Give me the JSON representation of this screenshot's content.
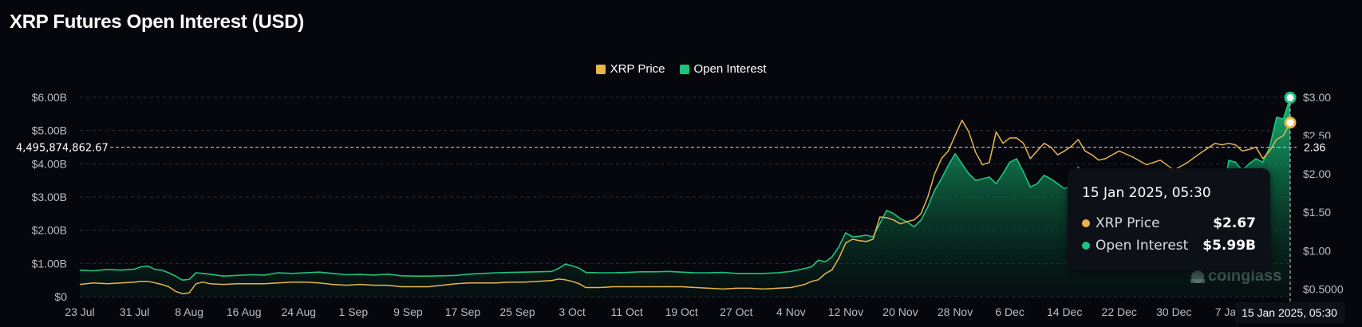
{
  "title": "XRP Futures Open Interest (USD)",
  "legend": [
    {
      "label": "XRP Price",
      "color": "#e9b54b"
    },
    {
      "label": "Open Interest",
      "color": "#1cc47e"
    }
  ],
  "watermark": "coinglass",
  "crosshair": {
    "left_value": "4,495,874,862.67",
    "right_value": "2.36",
    "x_label": "15 Jan 2025, 05:30"
  },
  "tooltip": {
    "title": "15 Jan 2025, 05:30",
    "rows": [
      {
        "name": "XRP Price",
        "value": "$2.67",
        "color": "#e9b54b"
      },
      {
        "name": "Open Interest",
        "value": "$5.99B",
        "color": "#1cc47e"
      }
    ]
  },
  "chart_data": {
    "type": "area",
    "title": "XRP Futures Open Interest (USD)",
    "x_ticks": [
      "23 Jul",
      "31 Jul",
      "8 Aug",
      "16 Aug",
      "24 Aug",
      "1 Sep",
      "9 Sep",
      "17 Sep",
      "25 Sep",
      "3 Oct",
      "11 Oct",
      "19 Oct",
      "27 Oct",
      "4 Nov",
      "12 Nov",
      "20 Nov",
      "28 Nov",
      "6 Dec",
      "14 Dec",
      "22 Dec",
      "30 Dec",
      "7 Jan"
    ],
    "left_axis": {
      "ticks": [
        "$0",
        "$1.00B",
        "$2.00B",
        "$3.00B",
        "$4.00B",
        "$5.00B",
        "$6.00B"
      ],
      "range": [
        0,
        6.0
      ],
      "unit": "USD billions"
    },
    "right_axis": {
      "ticks": [
        "$0.5000",
        "$1.00",
        "$1.50",
        "$2.00",
        "$2.50",
        "$3.00"
      ],
      "range": [
        0.4,
        3.0
      ],
      "unit": "USD"
    },
    "grid": true,
    "legend_position": "top-center",
    "x_range": [
      0,
      177
    ],
    "series": [
      {
        "name": "Open Interest",
        "axis": "left",
        "color": "#1cc47e",
        "points": [
          [
            0,
            0.8
          ],
          [
            2,
            0.78
          ],
          [
            4,
            0.82
          ],
          [
            6,
            0.8
          ],
          [
            8,
            0.83
          ],
          [
            9,
            0.9
          ],
          [
            10,
            0.92
          ],
          [
            11,
            0.82
          ],
          [
            12,
            0.8
          ],
          [
            13,
            0.72
          ],
          [
            14,
            0.62
          ],
          [
            15,
            0.5
          ],
          [
            16,
            0.52
          ],
          [
            17,
            0.72
          ],
          [
            18,
            0.7
          ],
          [
            19,
            0.68
          ],
          [
            21,
            0.62
          ],
          [
            23,
            0.64
          ],
          [
            25,
            0.66
          ],
          [
            27,
            0.65
          ],
          [
            29,
            0.72
          ],
          [
            31,
            0.7
          ],
          [
            33,
            0.72
          ],
          [
            35,
            0.74
          ],
          [
            37,
            0.7
          ],
          [
            39,
            0.66
          ],
          [
            41,
            0.67
          ],
          [
            43,
            0.65
          ],
          [
            45,
            0.68
          ],
          [
            47,
            0.63
          ],
          [
            49,
            0.62
          ],
          [
            51,
            0.62
          ],
          [
            53,
            0.63
          ],
          [
            55,
            0.64
          ],
          [
            57,
            0.68
          ],
          [
            59,
            0.7
          ],
          [
            61,
            0.72
          ],
          [
            63,
            0.73
          ],
          [
            65,
            0.74
          ],
          [
            67,
            0.75
          ],
          [
            69,
            0.76
          ],
          [
            70,
            0.85
          ],
          [
            71,
            0.98
          ],
          [
            72,
            0.93
          ],
          [
            73,
            0.86
          ],
          [
            74,
            0.73
          ],
          [
            76,
            0.72
          ],
          [
            78,
            0.72
          ],
          [
            80,
            0.73
          ],
          [
            82,
            0.75
          ],
          [
            84,
            0.75
          ],
          [
            86,
            0.76
          ],
          [
            88,
            0.74
          ],
          [
            90,
            0.72
          ],
          [
            92,
            0.72
          ],
          [
            94,
            0.73
          ],
          [
            96,
            0.7
          ],
          [
            98,
            0.7
          ],
          [
            100,
            0.7
          ],
          [
            102,
            0.72
          ],
          [
            104,
            0.76
          ],
          [
            106,
            0.85
          ],
          [
            107,
            0.9
          ],
          [
            108,
            1.1
          ],
          [
            109,
            1.05
          ],
          [
            110,
            1.2
          ],
          [
            111,
            1.5
          ],
          [
            112,
            1.92
          ],
          [
            113,
            1.8
          ],
          [
            114,
            1.82
          ],
          [
            115,
            1.85
          ],
          [
            116,
            1.8
          ],
          [
            117,
            2.2
          ],
          [
            118,
            2.6
          ],
          [
            119,
            2.5
          ],
          [
            120,
            2.35
          ],
          [
            121,
            2.25
          ],
          [
            122,
            2.1
          ],
          [
            123,
            2.3
          ],
          [
            124,
            2.7
          ],
          [
            125,
            3.2
          ],
          [
            126,
            3.55
          ],
          [
            127,
            3.95
          ],
          [
            128,
            4.3
          ],
          [
            129,
            4.0
          ],
          [
            130,
            3.7
          ],
          [
            131,
            3.5
          ],
          [
            132,
            3.55
          ],
          [
            133,
            3.6
          ],
          [
            134,
            3.4
          ],
          [
            135,
            3.7
          ],
          [
            136,
            4.05
          ],
          [
            137,
            4.15
          ],
          [
            138,
            3.75
          ],
          [
            139,
            3.3
          ],
          [
            140,
            3.4
          ],
          [
            141,
            3.65
          ],
          [
            142,
            3.55
          ],
          [
            143,
            3.4
          ],
          [
            144,
            3.25
          ],
          [
            145,
            3.35
          ],
          [
            146,
            3.9
          ],
          [
            147,
            3.55
          ],
          [
            148,
            3.3
          ],
          [
            149,
            3.1
          ],
          [
            150,
            3.2
          ],
          [
            152,
            3.15
          ],
          [
            154,
            2.8
          ],
          [
            156,
            2.45
          ],
          [
            158,
            2.6
          ],
          [
            160,
            2.4
          ],
          [
            162,
            2.35
          ],
          [
            164,
            2.5
          ],
          [
            166,
            2.5
          ],
          [
            167,
            2.7
          ],
          [
            168,
            4.1
          ],
          [
            169,
            4.05
          ],
          [
            170,
            3.8
          ],
          [
            171,
            4.0
          ],
          [
            172,
            4.15
          ],
          [
            173,
            4.05
          ],
          [
            174,
            4.5
          ],
          [
            175,
            5.4
          ],
          [
            176,
            5.35
          ],
          [
            177,
            5.99
          ]
        ]
      },
      {
        "name": "XRP Price",
        "axis": "right",
        "color": "#e9b54b",
        "points": [
          [
            0,
            0.56
          ],
          [
            2,
            0.58
          ],
          [
            4,
            0.57
          ],
          [
            6,
            0.58
          ],
          [
            8,
            0.59
          ],
          [
            9,
            0.6
          ],
          [
            10,
            0.6
          ],
          [
            11,
            0.58
          ],
          [
            12,
            0.56
          ],
          [
            13,
            0.53
          ],
          [
            14,
            0.47
          ],
          [
            15,
            0.44
          ],
          [
            16,
            0.45
          ],
          [
            17,
            0.57
          ],
          [
            18,
            0.59
          ],
          [
            19,
            0.57
          ],
          [
            21,
            0.56
          ],
          [
            23,
            0.57
          ],
          [
            25,
            0.57
          ],
          [
            27,
            0.57
          ],
          [
            29,
            0.58
          ],
          [
            31,
            0.59
          ],
          [
            33,
            0.59
          ],
          [
            35,
            0.58
          ],
          [
            37,
            0.56
          ],
          [
            39,
            0.55
          ],
          [
            41,
            0.56
          ],
          [
            43,
            0.55
          ],
          [
            45,
            0.55
          ],
          [
            47,
            0.53
          ],
          [
            49,
            0.53
          ],
          [
            51,
            0.53
          ],
          [
            53,
            0.55
          ],
          [
            55,
            0.57
          ],
          [
            57,
            0.58
          ],
          [
            59,
            0.58
          ],
          [
            61,
            0.58
          ],
          [
            63,
            0.59
          ],
          [
            65,
            0.59
          ],
          [
            67,
            0.6
          ],
          [
            69,
            0.61
          ],
          [
            70,
            0.63
          ],
          [
            71,
            0.62
          ],
          [
            72,
            0.6
          ],
          [
            73,
            0.57
          ],
          [
            74,
            0.52
          ],
          [
            76,
            0.52
          ],
          [
            78,
            0.53
          ],
          [
            80,
            0.53
          ],
          [
            82,
            0.53
          ],
          [
            84,
            0.53
          ],
          [
            86,
            0.53
          ],
          [
            88,
            0.53
          ],
          [
            90,
            0.52
          ],
          [
            92,
            0.51
          ],
          [
            94,
            0.5
          ],
          [
            96,
            0.51
          ],
          [
            98,
            0.51
          ],
          [
            100,
            0.5
          ],
          [
            102,
            0.51
          ],
          [
            104,
            0.52
          ],
          [
            106,
            0.56
          ],
          [
            107,
            0.6
          ],
          [
            108,
            0.62
          ],
          [
            109,
            0.7
          ],
          [
            110,
            0.75
          ],
          [
            111,
            0.9
          ],
          [
            112,
            1.1
          ],
          [
            113,
            1.15
          ],
          [
            114,
            1.13
          ],
          [
            115,
            1.12
          ],
          [
            116,
            1.15
          ],
          [
            117,
            1.44
          ],
          [
            118,
            1.43
          ],
          [
            119,
            1.4
          ],
          [
            120,
            1.35
          ],
          [
            121,
            1.38
          ],
          [
            122,
            1.4
          ],
          [
            123,
            1.48
          ],
          [
            124,
            1.7
          ],
          [
            125,
            2.0
          ],
          [
            126,
            2.2
          ],
          [
            127,
            2.3
          ],
          [
            128,
            2.5
          ],
          [
            129,
            2.7
          ],
          [
            130,
            2.55
          ],
          [
            131,
            2.28
          ],
          [
            132,
            2.12
          ],
          [
            133,
            2.15
          ],
          [
            134,
            2.55
          ],
          [
            135,
            2.4
          ],
          [
            136,
            2.47
          ],
          [
            137,
            2.47
          ],
          [
            138,
            2.4
          ],
          [
            139,
            2.2
          ],
          [
            140,
            2.3
          ],
          [
            141,
            2.4
          ],
          [
            142,
            2.35
          ],
          [
            143,
            2.25
          ],
          [
            144,
            2.3
          ],
          [
            145,
            2.36
          ],
          [
            146,
            2.45
          ],
          [
            147,
            2.3
          ],
          [
            148,
            2.25
          ],
          [
            149,
            2.18
          ],
          [
            150,
            2.2
          ],
          [
            152,
            2.3
          ],
          [
            154,
            2.22
          ],
          [
            156,
            2.12
          ],
          [
            158,
            2.18
          ],
          [
            160,
            2.05
          ],
          [
            162,
            2.15
          ],
          [
            164,
            2.28
          ],
          [
            166,
            2.4
          ],
          [
            167,
            2.38
          ],
          [
            168,
            2.4
          ],
          [
            169,
            2.38
          ],
          [
            170,
            2.3
          ],
          [
            171,
            2.32
          ],
          [
            172,
            2.35
          ],
          [
            173,
            2.2
          ],
          [
            174,
            2.3
          ],
          [
            175,
            2.45
          ],
          [
            176,
            2.5
          ],
          [
            177,
            2.67
          ]
        ]
      }
    ]
  }
}
